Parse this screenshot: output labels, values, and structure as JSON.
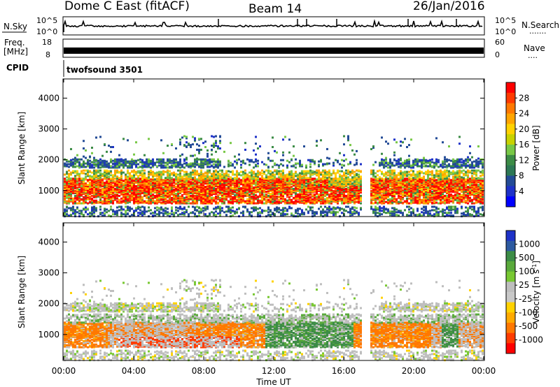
{
  "header": {
    "station": "Dome C East (fitACF)",
    "beam": "Beam 14",
    "date": "26/Jan/2016"
  },
  "aux_panels": {
    "nsky": {
      "left_label": "N.Sky",
      "left_ticks": [
        "10^5",
        "10^0"
      ],
      "right_ticks": [
        "10^5",
        "10^0"
      ],
      "right_label": "N.Search",
      "right_label_dots": "......."
    },
    "freq": {
      "left_label_top": "Freq.",
      "left_label_bottom": "[MHz]",
      "left_ticks": [
        "18",
        "8"
      ],
      "right_ticks": [
        "60",
        "0"
      ],
      "right_label": "Nave",
      "right_label_dots": "...."
    },
    "cpid": {
      "label": "CPID",
      "program": "twofsound 3501"
    }
  },
  "chart_data": [
    {
      "type": "heatmap",
      "name": "power",
      "ylabel": "Slant Range [km]",
      "xlabel": "",
      "x_ticks": [
        "00:00",
        "04:00",
        "08:00",
        "12:00",
        "16:00",
        "20:00",
        "00:00"
      ],
      "x_tick_hours": [
        0,
        4,
        8,
        12,
        16,
        20,
        24
      ],
      "y_ticks": [
        1000,
        2000,
        3000,
        4000
      ],
      "ylim": [
        180,
        4600
      ],
      "xlim_hours": [
        0,
        24
      ],
      "colorbar": {
        "label": "Power [dB]",
        "ticks": [
          "28",
          "24",
          "20",
          "16",
          "12",
          "8",
          "4"
        ],
        "colors": [
          "#ff0000",
          "#ff3a00",
          "#ff7800",
          "#ffa500",
          "#ffd200",
          "#c8d200",
          "#78c846",
          "#3c8c46",
          "#2d7855",
          "#234b96",
          "#1e32c8",
          "#0000ff"
        ]
      },
      "bands": [
        {
          "range_km": [
            1050,
            1400
          ],
          "level": "strong"
        },
        {
          "range_km": [
            750,
            1050
          ],
          "level": "strong"
        },
        {
          "range_km": [
            1400,
            1700
          ],
          "level": "medium"
        },
        {
          "range_km": [
            1800,
            2000
          ],
          "level": "weak"
        },
        {
          "range_km": [
            200,
            500
          ],
          "level": "weak"
        }
      ]
    },
    {
      "type": "heatmap",
      "name": "velocity",
      "ylabel": "Slant Range [km]",
      "xlabel": "Time UT",
      "x_ticks": [
        "00:00",
        "04:00",
        "08:00",
        "12:00",
        "16:00",
        "20:00",
        "00:00"
      ],
      "x_tick_hours": [
        0,
        4,
        8,
        12,
        16,
        20,
        24
      ],
      "y_ticks": [
        1000,
        2000,
        3000,
        4000
      ],
      "ylim": [
        180,
        4600
      ],
      "xlim_hours": [
        0,
        24
      ],
      "colorbar": {
        "label": "Velocity [m s^-1]",
        "ticks": [
          "1000",
          "500",
          "100",
          "25",
          "-25",
          "-100",
          "-500",
          "-1000"
        ],
        "colors": [
          "#1e32c8",
          "#2d5aa0",
          "#3c8c46",
          "#5aaa3c",
          "#78c832",
          "#bebebe",
          "#c8c8c8",
          "#ffd200",
          "#ffaa00",
          "#ff7800",
          "#ff3c00",
          "#ff0000"
        ]
      }
    }
  ],
  "colors": {
    "ground_scatter": "#bebebe",
    "axis": "#000000"
  }
}
